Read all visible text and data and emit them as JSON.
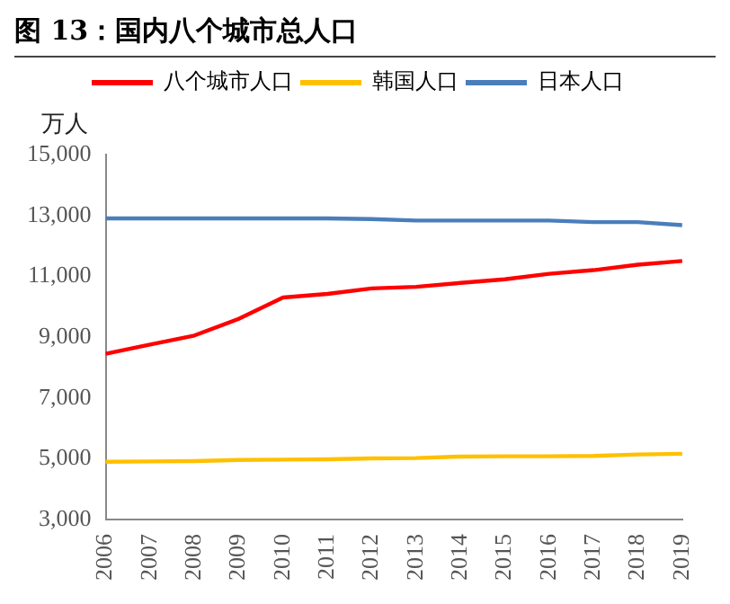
{
  "chart_data": {
    "type": "line",
    "title": "图 13：国内八个城市总人口",
    "ylabel": "万人",
    "categories": [
      "2006",
      "2007",
      "2008",
      "2009",
      "2010",
      "2011",
      "2012",
      "2013",
      "2014",
      "2015",
      "2016",
      "2017",
      "2018",
      "2019"
    ],
    "series": [
      {
        "name": "八个城市人口",
        "color": "#ff0000",
        "values": [
          8450,
          8750,
          9050,
          9600,
          10300,
          10420,
          10600,
          10650,
          10780,
          10900,
          11080,
          11200,
          11380,
          11500
        ]
      },
      {
        "name": "韩国人口",
        "color": "#ffc000",
        "values": [
          4900,
          4910,
          4920,
          4960,
          4970,
          4980,
          5010,
          5020,
          5070,
          5080,
          5080,
          5090,
          5140,
          5160
        ]
      },
      {
        "name": "日本人口",
        "color": "#4a7ebb",
        "values": [
          12900,
          12900,
          12900,
          12900,
          12900,
          12900,
          12880,
          12830,
          12830,
          12830,
          12830,
          12780,
          12780,
          12680
        ]
      }
    ],
    "ylim": [
      3000,
      15000
    ],
    "yticks": [
      {
        "value": 3000,
        "label": "3,000"
      },
      {
        "value": 5000,
        "label": "5,000"
      },
      {
        "value": 7000,
        "label": "7,000"
      },
      {
        "value": 9000,
        "label": "9,000"
      },
      {
        "value": 11000,
        "label": "11,000"
      },
      {
        "value": 13000,
        "label": "13,000"
      },
      {
        "value": 15000,
        "label": "15,000"
      }
    ],
    "grid": false,
    "legend": "top",
    "marker": "none",
    "line_style": "solid"
  }
}
